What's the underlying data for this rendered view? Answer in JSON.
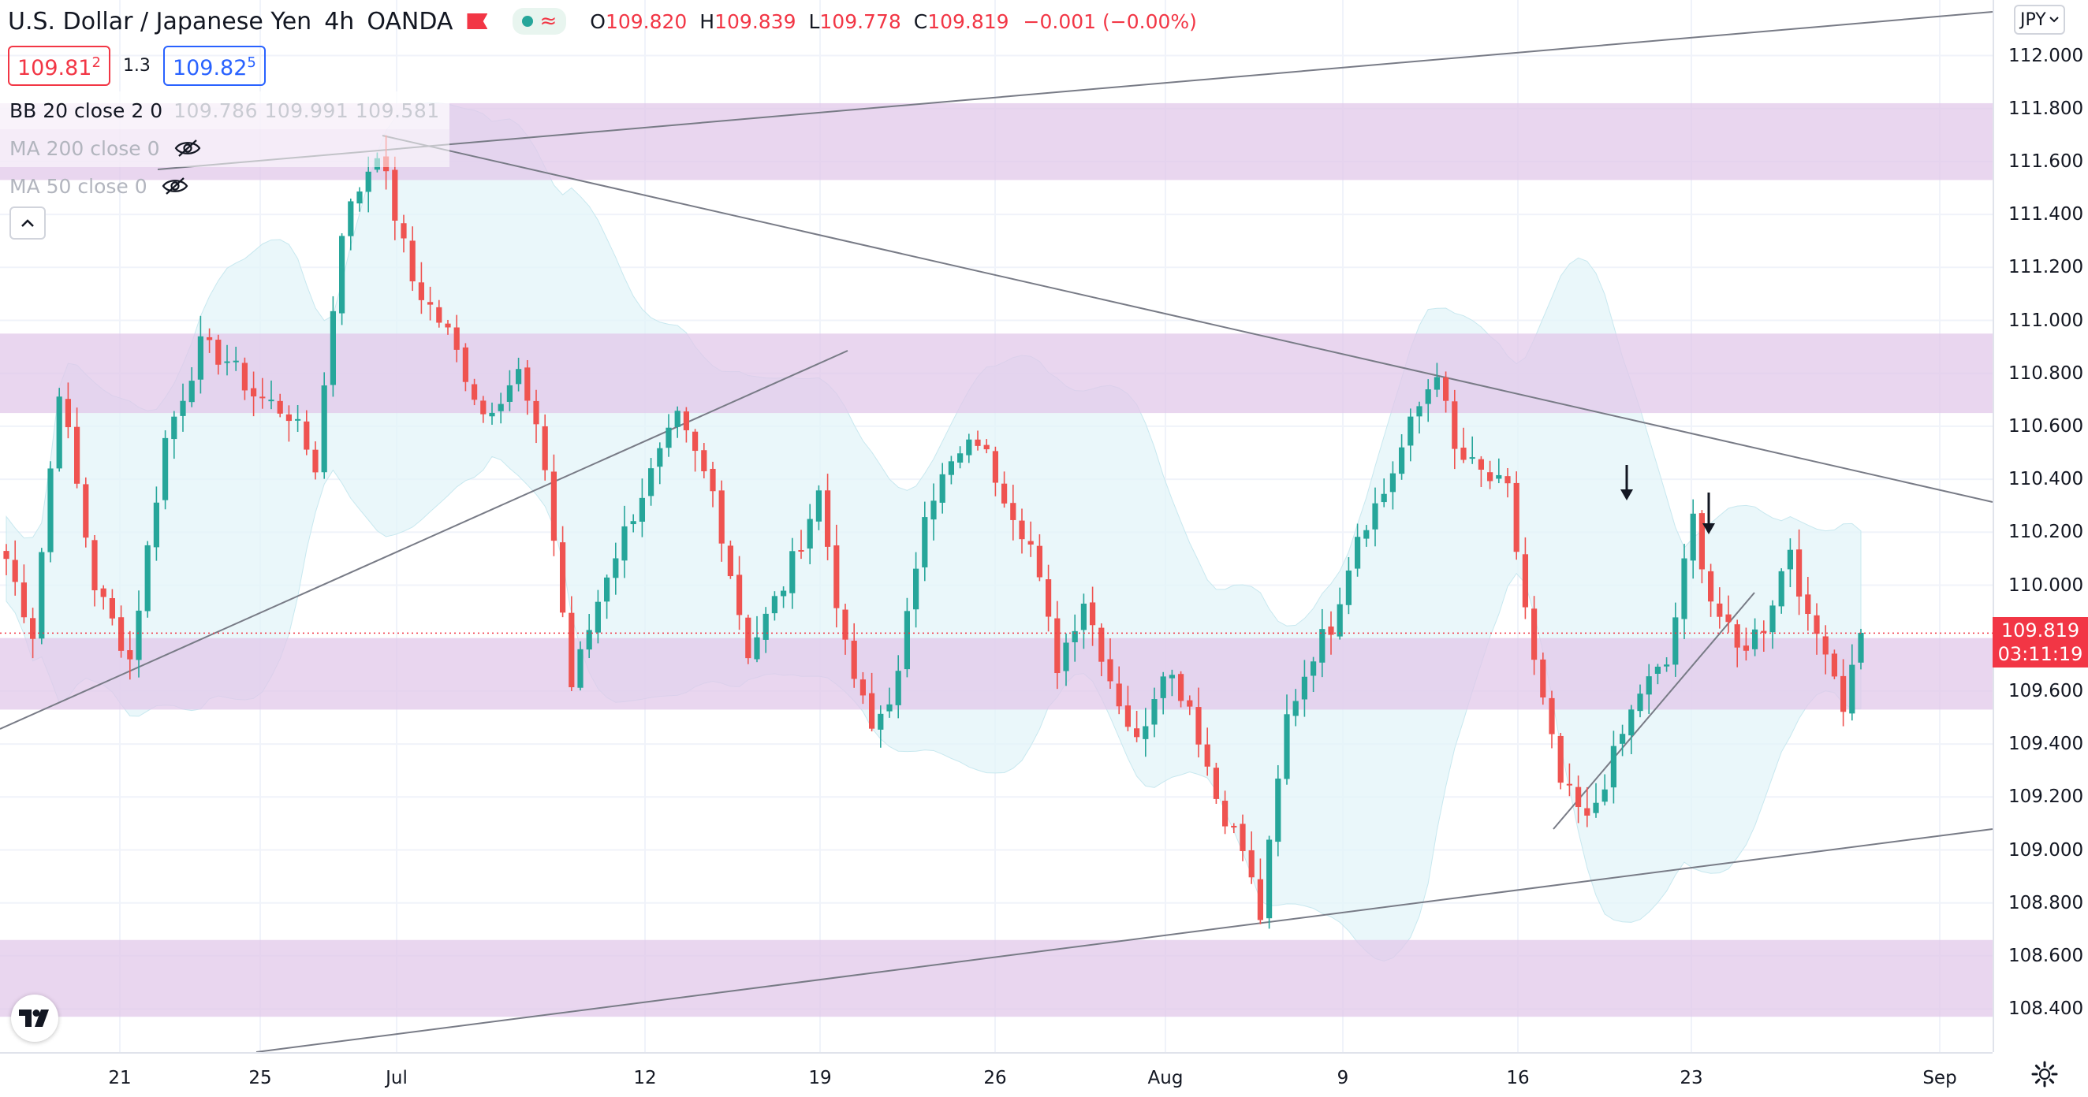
{
  "header": {
    "symbol_title": "U.S. Dollar / Japanese Yen",
    "interval": "4h",
    "exchange": "OANDA",
    "ohlc": {
      "open_label": "O",
      "open": "109.820",
      "high_label": "H",
      "high": "109.839",
      "low_label": "L",
      "low": "109.778",
      "close_label": "C",
      "close": "109.819",
      "change": "−0.001 (−0.00%)"
    }
  },
  "quote": {
    "sell_main": "109.81",
    "sell_sup": "2",
    "spread": "1.3",
    "buy_main": "109.82",
    "buy_sup": "5"
  },
  "indicators": [
    {
      "label": "BB 20 close 2 0",
      "values": "109.786  109.991  109.581"
    },
    {
      "label": "MA 200 close 0"
    },
    {
      "label": "MA 50 close 0"
    }
  ],
  "price_axis": {
    "currency": "JPY",
    "labels": [
      "112.000",
      "111.800",
      "111.600",
      "111.400",
      "111.200",
      "111.000",
      "110.800",
      "110.600",
      "110.400",
      "110.200",
      "110.000",
      "109.600",
      "109.400",
      "109.200",
      "109.000",
      "108.800",
      "108.600",
      "108.400"
    ],
    "current_price": "109.819",
    "countdown": "03:11:19"
  },
  "time_axis": {
    "labels": [
      "21",
      "25",
      "Jul",
      "12",
      "19",
      "26",
      "Aug",
      "9",
      "16",
      "23",
      "Sep"
    ]
  },
  "colors": {
    "up": "#26a69a",
    "down": "#ef5350",
    "zone": "#e1c8ea",
    "bb_fill": "#e3f4f8",
    "trendline": "#787b86",
    "current_price_badge": "#f23645"
  },
  "icons": [
    "flag-icon",
    "status-dot-icon",
    "wave-icon",
    "eye-off-icon",
    "chevron-up-icon",
    "tradingview-logo-icon",
    "chevron-down-icon",
    "gear-icon",
    "arrow-down-icon"
  ],
  "chart_data": {
    "type": "candlestick",
    "y_range": [
      108.3,
      112.2
    ],
    "y_ticks": [
      112.0,
      111.8,
      111.6,
      111.4,
      111.2,
      111.0,
      110.8,
      110.6,
      110.4,
      110.2,
      110.0,
      109.6,
      109.4,
      109.2,
      109.0,
      108.8,
      108.6,
      108.4
    ],
    "x_ticks": [
      "21",
      "25",
      "Jul",
      "12",
      "19",
      "26",
      "Aug",
      "9",
      "16",
      "23",
      "Sep"
    ],
    "current_price": 109.819,
    "support_resistance_zones": [
      [
        111.53,
        111.82
      ],
      [
        110.65,
        110.95
      ],
      [
        109.53,
        109.8
      ],
      [
        108.37,
        108.66
      ]
    ],
    "anchor_closes": [
      [
        0,
        110.1
      ],
      [
        3,
        109.82
      ],
      [
        6,
        110.75
      ],
      [
        10,
        110.0
      ],
      [
        14,
        109.72
      ],
      [
        18,
        110.55
      ],
      [
        22,
        110.9
      ],
      [
        25,
        110.85
      ],
      [
        28,
        110.72
      ],
      [
        32,
        110.65
      ],
      [
        35,
        110.45
      ],
      [
        38,
        111.35
      ],
      [
        42,
        111.65
      ],
      [
        46,
        111.15
      ],
      [
        50,
        110.95
      ],
      [
        54,
        110.65
      ],
      [
        58,
        110.8
      ],
      [
        61,
        110.45
      ],
      [
        64,
        109.62
      ],
      [
        68,
        110.05
      ],
      [
        72,
        110.35
      ],
      [
        76,
        110.62
      ],
      [
        80,
        110.35
      ],
      [
        84,
        109.75
      ],
      [
        88,
        110.0
      ],
      [
        92,
        110.35
      ],
      [
        95,
        109.75
      ],
      [
        98,
        109.45
      ],
      [
        101,
        109.65
      ],
      [
        104,
        110.3
      ],
      [
        107,
        110.45
      ],
      [
        110,
        110.55
      ],
      [
        113,
        110.35
      ],
      [
        116,
        110.15
      ],
      [
        119,
        109.7
      ],
      [
        122,
        109.95
      ],
      [
        125,
        109.65
      ],
      [
        128,
        109.4
      ],
      [
        131,
        109.7
      ],
      [
        134,
        109.55
      ],
      [
        137,
        109.2
      ],
      [
        140,
        109.0
      ],
      [
        142,
        108.75
      ],
      [
        145,
        109.5
      ],
      [
        148,
        109.75
      ],
      [
        150,
        109.85
      ],
      [
        153,
        110.2
      ],
      [
        156,
        110.35
      ],
      [
        159,
        110.6
      ],
      [
        162,
        110.82
      ],
      [
        164,
        110.5
      ],
      [
        167,
        110.42
      ],
      [
        170,
        110.35
      ],
      [
        173,
        109.7
      ],
      [
        176,
        109.25
      ],
      [
        179,
        109.1
      ],
      [
        182,
        109.35
      ],
      [
        185,
        109.6
      ],
      [
        188,
        109.7
      ],
      [
        191,
        110.25
      ],
      [
        193,
        109.95
      ],
      [
        196,
        109.75
      ],
      [
        199,
        109.85
      ],
      [
        202,
        110.15
      ],
      [
        204,
        109.85
      ],
      [
        206,
        109.78
      ],
      [
        208,
        109.55
      ],
      [
        210,
        109.82
      ]
    ],
    "annotations": [
      "arrow-down above 110.22 near Aug 20",
      "arrow-down above 110.15 near Aug 23"
    ]
  }
}
